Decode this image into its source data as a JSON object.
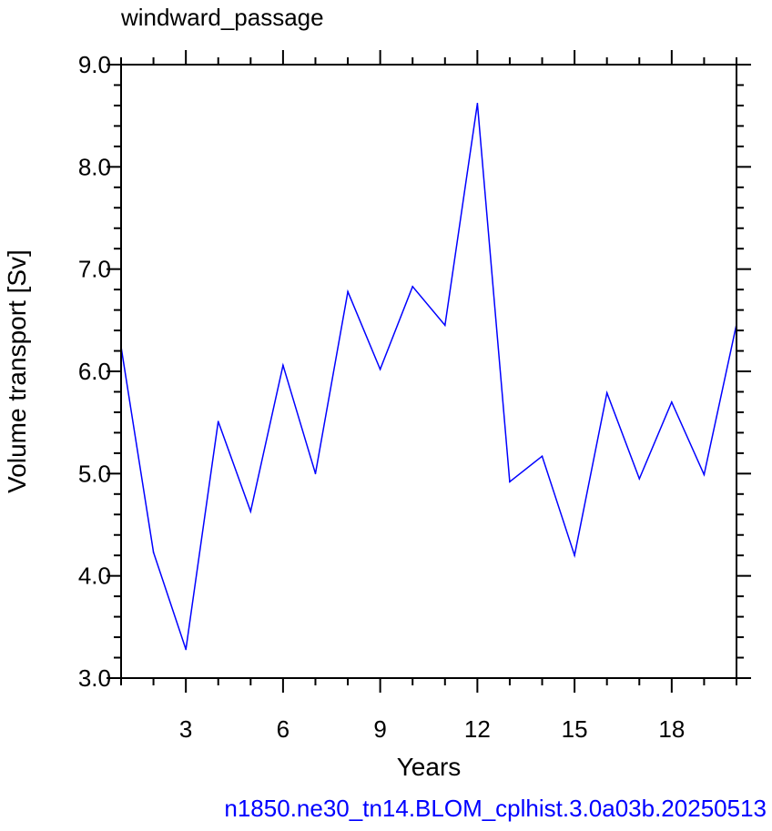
{
  "chart_data": {
    "type": "line",
    "title": "windward_passage",
    "xlabel": "Years",
    "ylabel": "Volume transport [Sv]",
    "xlim": [
      1,
      20
    ],
    "ylim": [
      3.0,
      9.0
    ],
    "x_ticks": [
      3,
      6,
      9,
      12,
      15,
      18
    ],
    "y_ticks": [
      "3.0",
      "4.0",
      "5.0",
      "6.0",
      "7.0",
      "8.0",
      "9.0"
    ],
    "grid": false,
    "series": [
      {
        "color": "#0000ff",
        "x": [
          1,
          2,
          3,
          4,
          5,
          6,
          7,
          8,
          9,
          10,
          11,
          12,
          13,
          14,
          15,
          16,
          17,
          18,
          19,
          20
        ],
        "values": [
          6.24,
          4.23,
          3.28,
          5.51,
          4.63,
          6.06,
          5.0,
          6.78,
          6.02,
          6.83,
          6.45,
          8.62,
          4.92,
          5.17,
          4.2,
          5.79,
          4.95,
          5.7,
          4.99,
          6.46
        ]
      }
    ]
  },
  "caption": {
    "text": "n1850.ne30_tn14.BLOM_cplhist.3.0a03b.20250513",
    "color": "#0000ff"
  }
}
